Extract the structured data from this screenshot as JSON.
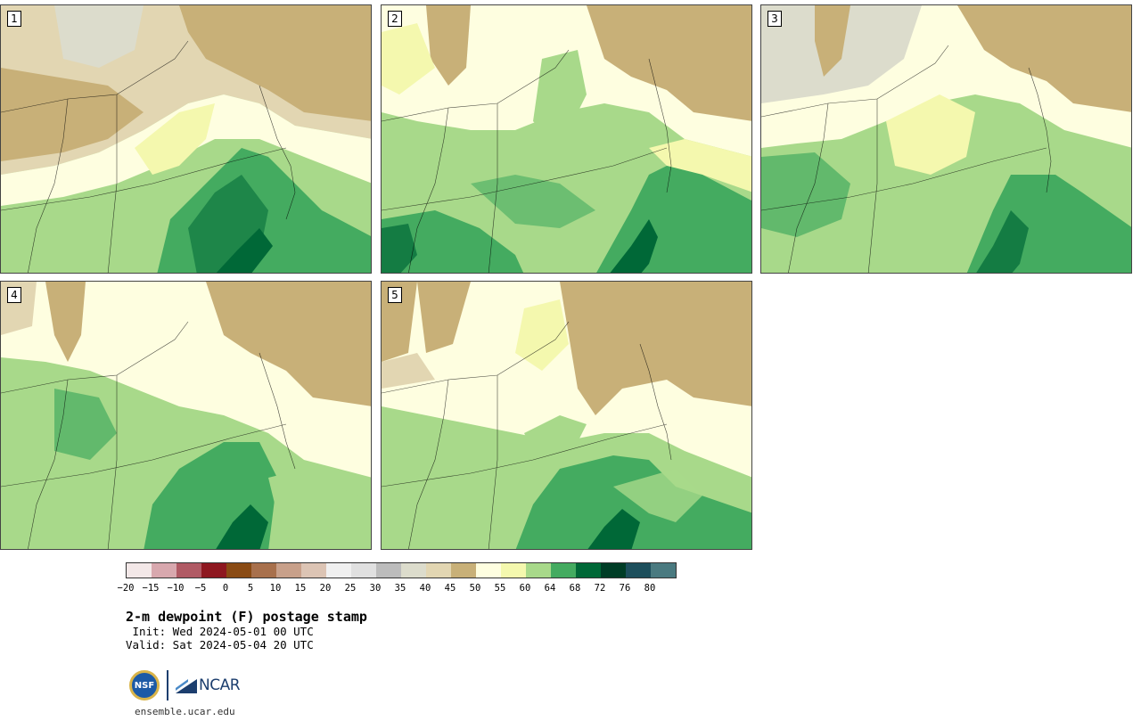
{
  "panels": [
    {
      "label": "1"
    },
    {
      "label": "2"
    },
    {
      "label": "3"
    },
    {
      "label": "4"
    },
    {
      "label": "5"
    }
  ],
  "colorbar": {
    "colors": [
      "#f3e8e8",
      "#d8a8ae",
      "#b05a64",
      "#8e1820",
      "#8a4b14",
      "#a8704c",
      "#c8a08a",
      "#dcc4b4",
      "#f0f0f0",
      "#e0e0e0",
      "#bcbcbc",
      "#dcdccc",
      "#e2d6b2",
      "#c8b078",
      "#fefee0",
      "#f4f8ae",
      "#a8d98a",
      "#44ab60",
      "#006837",
      "#003d26",
      "#1d4f5c",
      "#4a7a80"
    ],
    "tick_labels": [
      "−20",
      "−15",
      "−10",
      "−5",
      "0",
      "5",
      "10",
      "15",
      "20",
      "25",
      "30",
      "35",
      "40",
      "45",
      "50",
      "55",
      "60",
      "64",
      "68",
      "72",
      "76",
      "80"
    ]
  },
  "text": {
    "title": "2-m dewpoint (F) postage stamp",
    "init": " Init: Wed 2024-05-01 00 UTC",
    "valid": "Valid: Sat 2024-05-04 20 UTC",
    "site": "ensemble.ucar.edu",
    "nsf_logo": "NSF",
    "ncar_logo": "NCAR"
  },
  "map_colors": {
    "dry_tan": "#c8b078",
    "light_tan": "#e2d6b2",
    "gray": "#dcdccc",
    "cream": "#fefee0",
    "pale_yellow": "#f4f8ae",
    "light_green": "#a8d98a",
    "green": "#44ab60",
    "dark_green": "#006837"
  }
}
